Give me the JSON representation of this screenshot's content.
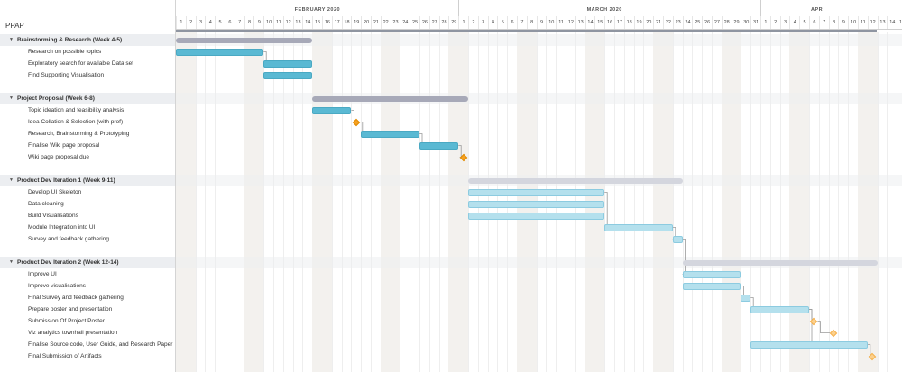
{
  "project": {
    "title": "PPAP"
  },
  "timeline": {
    "months": [
      {
        "label": "FEBRUARY 2020",
        "days": [
          1,
          2,
          3,
          4,
          5,
          6,
          7,
          8,
          9,
          10,
          11,
          12,
          13,
          14,
          15,
          16,
          17,
          18,
          19,
          20,
          21,
          22,
          23,
          24,
          25,
          26,
          27,
          28,
          29
        ]
      },
      {
        "label": "MARCH 2020",
        "days": [
          1,
          2,
          3,
          4,
          5,
          6,
          7,
          8,
          9,
          10,
          11,
          12,
          13,
          14,
          15,
          16,
          17,
          18,
          19,
          20,
          21,
          22,
          23,
          24,
          25,
          26,
          27,
          28,
          29,
          30,
          31
        ]
      },
      {
        "label": "APR",
        "days": [
          1,
          2,
          3,
          4,
          5,
          6,
          7,
          8,
          9,
          10,
          11,
          12,
          13,
          14,
          15
        ]
      }
    ]
  },
  "rows": [
    {
      "type": "group",
      "label": "Brainstorming & Research (Week 4-5)",
      "start": 0,
      "end": 14,
      "color": "#a7a9b8"
    },
    {
      "type": "task",
      "label": "Research on possible topics",
      "start": 0,
      "end": 9,
      "color": "#5ab9d3"
    },
    {
      "type": "task",
      "label": "Exploratory search for available Data set",
      "start": 9,
      "end": 14,
      "color": "#5ab9d3"
    },
    {
      "type": "task",
      "label": "Find Supporting Visualisation",
      "start": 9,
      "end": 14,
      "color": "#5ab9d3"
    },
    {
      "type": "spacer"
    },
    {
      "type": "group",
      "label": "Project Proposal (Week 6-8)",
      "start": 14,
      "end": 30,
      "color": "#a7a9b8"
    },
    {
      "type": "task",
      "label": "Topic ideation and feasibility analysis",
      "start": 14,
      "end": 18,
      "color": "#5ab9d3"
    },
    {
      "type": "milestone",
      "label": "Idea Collation & Selection (with prof)",
      "at": 18.5,
      "color": "#f5a021"
    },
    {
      "type": "task",
      "label": "Research, Brainstorming & Prototyping",
      "start": 19,
      "end": 25,
      "color": "#5ab9d3"
    },
    {
      "type": "task",
      "label": "Finalise Wiki page proposal",
      "start": 25,
      "end": 29,
      "color": "#5ab9d3"
    },
    {
      "type": "milestone",
      "label": "Wiki page proposal due",
      "at": 29.5,
      "color": "#f5a021"
    },
    {
      "type": "spacer"
    },
    {
      "type": "group",
      "label": "Product Dev Iteration 1 (Week 9-11)",
      "start": 30,
      "end": 52,
      "color": "#d4d6de"
    },
    {
      "type": "task",
      "label": "Develop UI Skeleton",
      "start": 30,
      "end": 44,
      "color": "#b4e0ed"
    },
    {
      "type": "task",
      "label": "Data cleaning",
      "start": 30,
      "end": 44,
      "color": "#b4e0ed"
    },
    {
      "type": "task",
      "label": "Build Visualisations",
      "start": 30,
      "end": 44,
      "color": "#b4e0ed"
    },
    {
      "type": "task",
      "label": "Module Integration into UI",
      "start": 44,
      "end": 51,
      "color": "#b4e0ed"
    },
    {
      "type": "task",
      "label": "Survey and feedback  gathering",
      "start": 51,
      "end": 52,
      "color": "#b4e0ed"
    },
    {
      "type": "spacer"
    },
    {
      "type": "group",
      "label": "Product Dev Iteration 2 (Week 12-14)",
      "start": 52,
      "end": 72,
      "color": "#d4d6de"
    },
    {
      "type": "task",
      "label": "Improve UI",
      "start": 52,
      "end": 58,
      "color": "#b4e0ed"
    },
    {
      "type": "task",
      "label": "Improve visualisations",
      "start": 52,
      "end": 58,
      "color": "#b4e0ed"
    },
    {
      "type": "task",
      "label": "Final Survey and feedback gathering",
      "start": 58,
      "end": 59,
      "color": "#b4e0ed"
    },
    {
      "type": "task",
      "label": "Prepare poster and presentation",
      "start": 59,
      "end": 65,
      "color": "#b4e0ed"
    },
    {
      "type": "milestone",
      "label": "Submission Of Project Poster",
      "at": 65.5,
      "color": "#fbd08e"
    },
    {
      "type": "milestone",
      "label": "Viz analytics townhall presentation",
      "at": 67.5,
      "color": "#fbd08e"
    },
    {
      "type": "task",
      "label": "Finalise Source code, User Guide, and Research Paper",
      "start": 59,
      "end": 71,
      "color": "#b4e0ed"
    },
    {
      "type": "milestone",
      "label": "Final Submission of Artifacts",
      "at": 71.5,
      "color": "#fbd08e"
    }
  ]
}
